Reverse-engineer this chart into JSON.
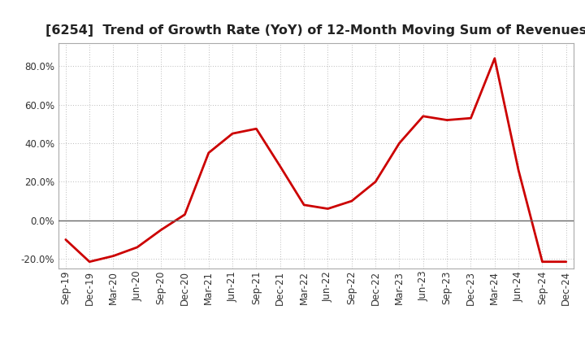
{
  "title": "[6254]  Trend of Growth Rate (YoY) of 12-Month Moving Sum of Revenues",
  "line_color": "#cc0000",
  "background_color": "#ffffff",
  "grid_color": "#bbbbbb",
  "x_labels": [
    "Sep-19",
    "Dec-19",
    "Mar-20",
    "Jun-20",
    "Sep-20",
    "Dec-20",
    "Mar-21",
    "Jun-21",
    "Sep-21",
    "Dec-21",
    "Mar-22",
    "Jun-22",
    "Sep-22",
    "Dec-22",
    "Mar-23",
    "Jun-23",
    "Sep-23",
    "Dec-23",
    "Mar-24",
    "Jun-24",
    "Sep-24",
    "Dec-24"
  ],
  "y_values": [
    -10.0,
    -21.5,
    -18.5,
    -14.0,
    -5.0,
    3.0,
    35.0,
    45.0,
    47.5,
    28.0,
    8.0,
    6.0,
    10.0,
    20.0,
    40.0,
    54.0,
    52.0,
    53.0,
    84.0,
    26.0,
    -21.5,
    -21.5
  ],
  "ylim": [
    -25,
    92
  ],
  "yticks": [
    -20.0,
    0.0,
    20.0,
    40.0,
    60.0,
    80.0
  ],
  "title_fontsize": 11.5,
  "tick_fontsize": 8.5,
  "line_width": 2.0
}
